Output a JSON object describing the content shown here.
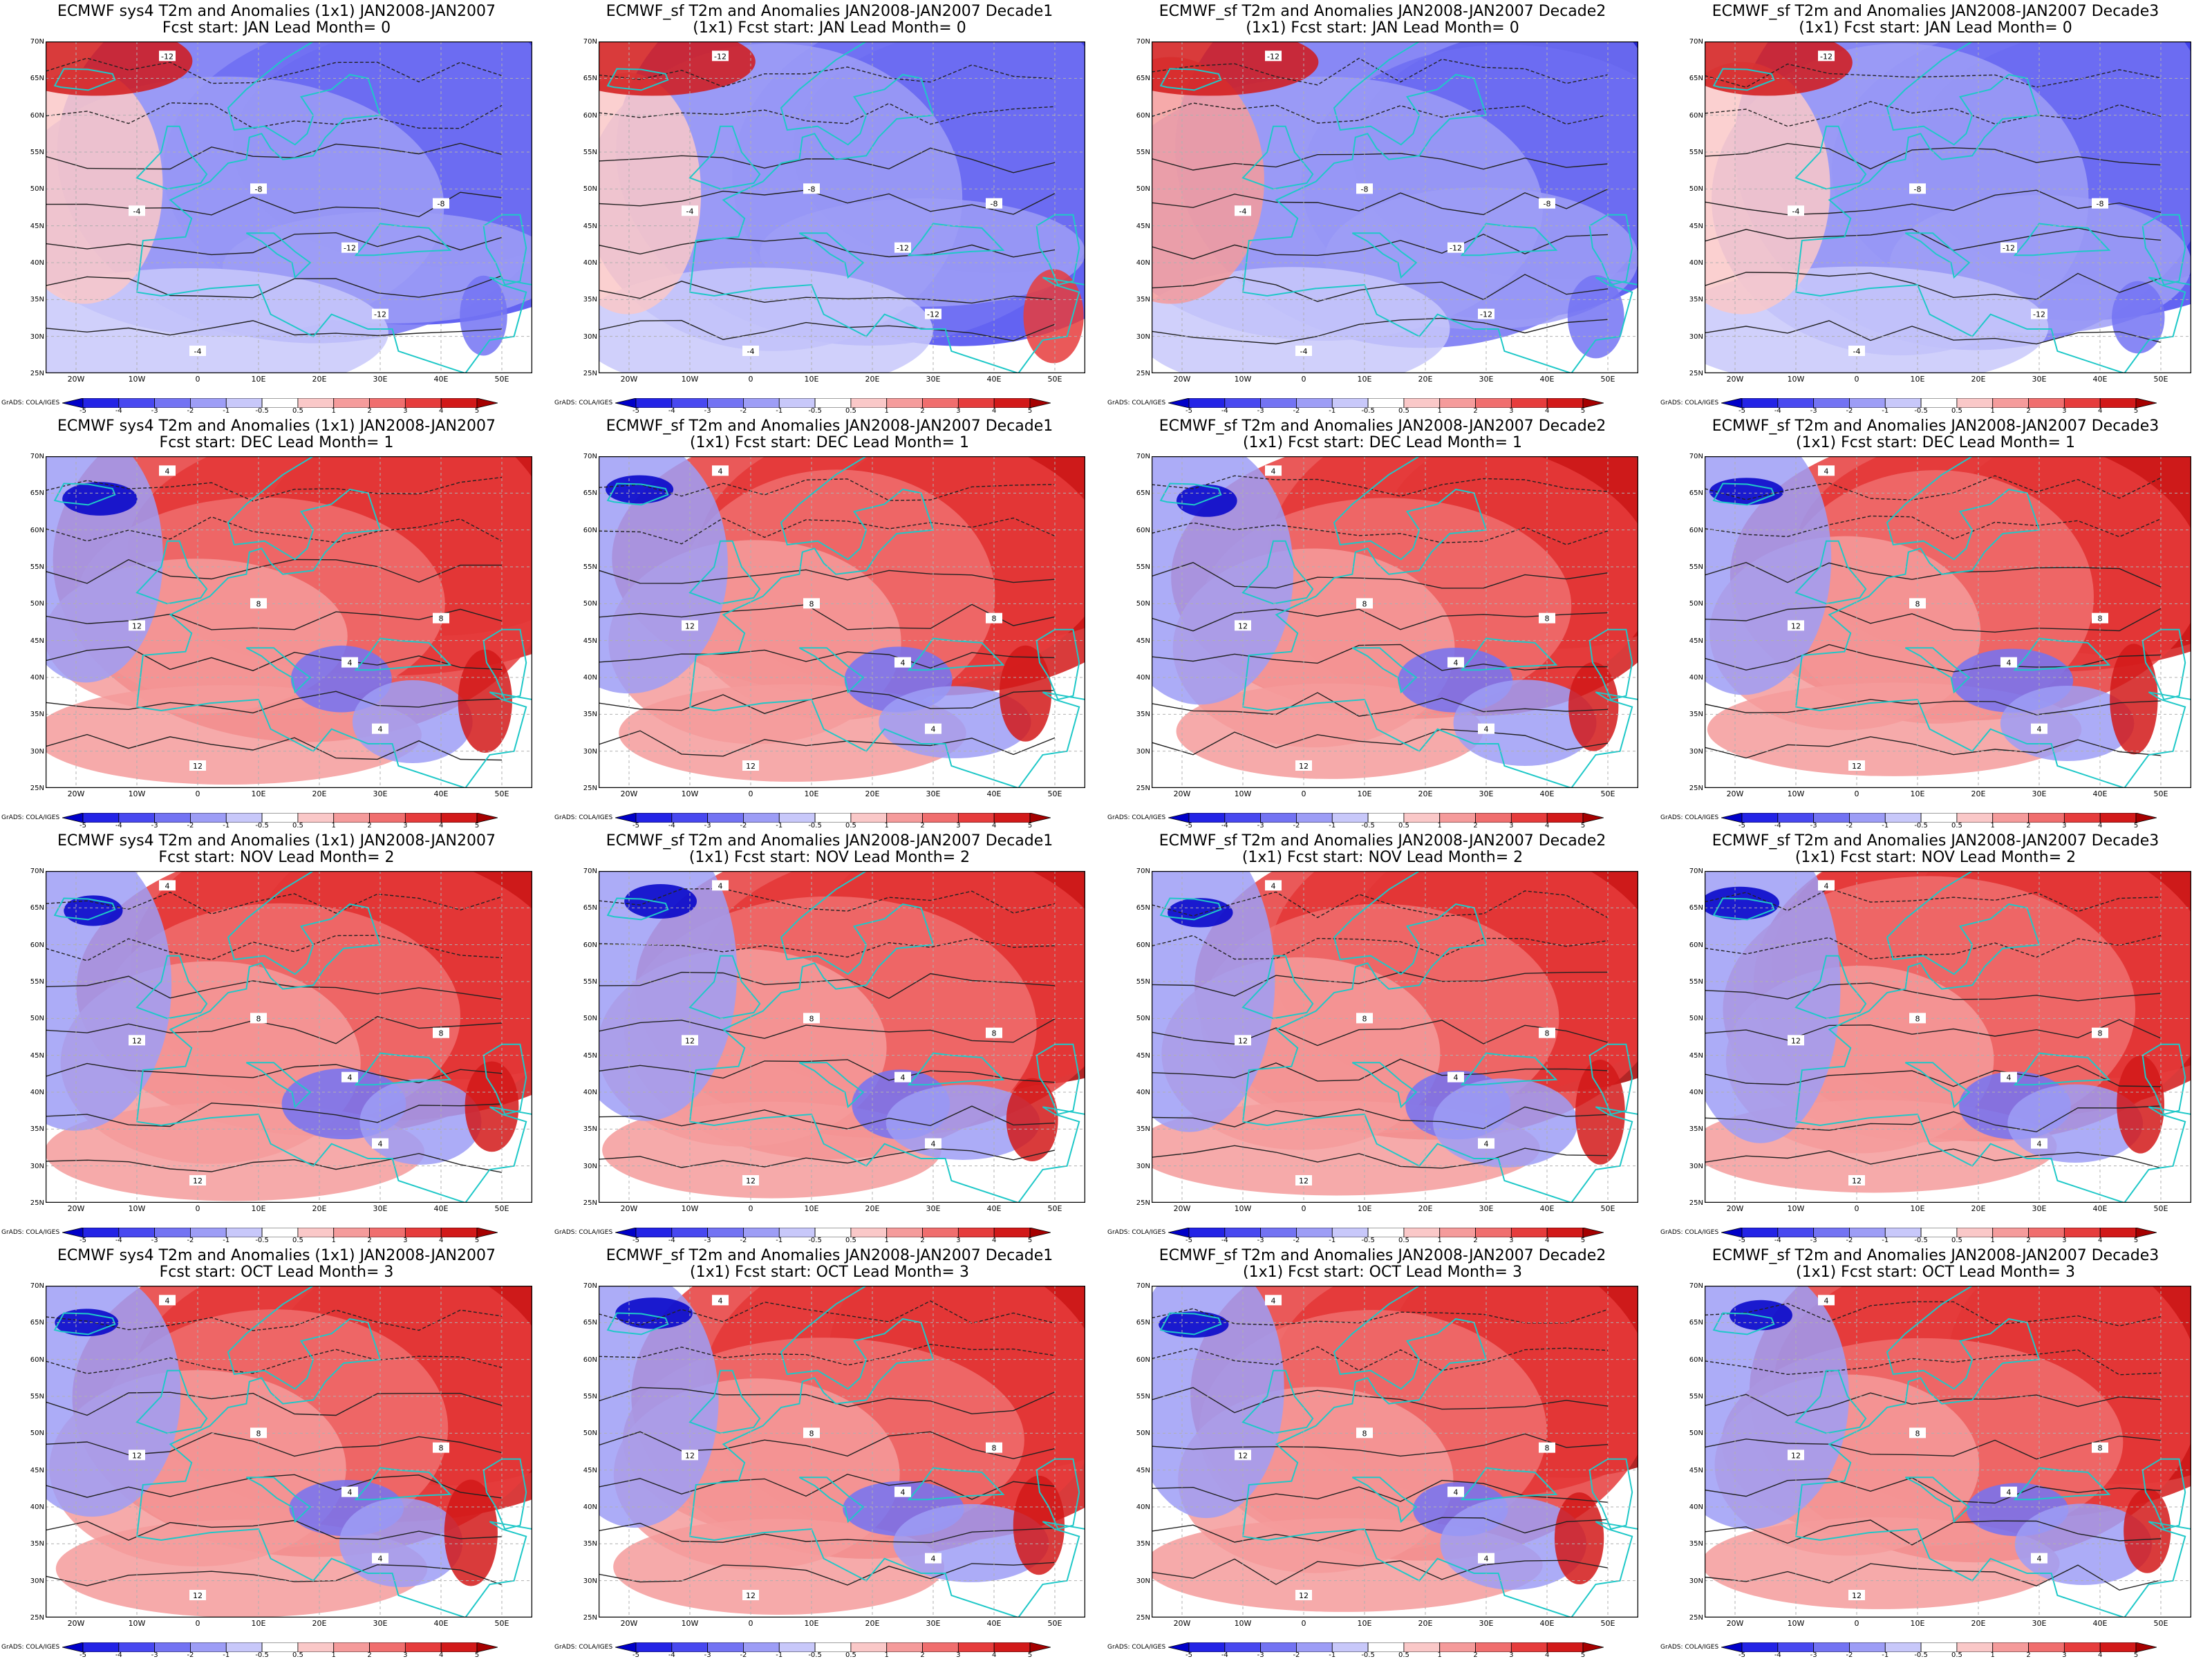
{
  "rows": [
    {
      "start": "JAN",
      "lead": "0"
    },
    {
      "start": "DEC",
      "lead": "1"
    },
    {
      "start": "NOV",
      "lead": "2"
    },
    {
      "start": "OCT",
      "lead": "3"
    }
  ],
  "columns": [
    {
      "title1": "ECMWF sys4 T2m and Anomalies (1x1) JAN2008-JAN2007",
      "title2_prefix": "",
      "decade": ""
    },
    {
      "title1": "ECMWF_sf T2m and Anomalies JAN2008-JAN2007 Decade1",
      "title2_prefix": "(1x1) ",
      "decade": "1"
    },
    {
      "title1": "ECMWF_sf T2m and Anomalies JAN2008-JAN2007 Decade2",
      "title2_prefix": "(1x1) ",
      "decade": "2"
    },
    {
      "title1": "ECMWF_sf T2m and Anomalies JAN2008-JAN2007 Decade3",
      "title2_prefix": "(1x1) ",
      "decade": "3"
    }
  ],
  "subtitle_template": {
    "fcst": "Fcst start:",
    "lead": "Lead Month="
  },
  "lat_labels": [
    "70N",
    "65N",
    "60N",
    "55N",
    "50N",
    "45N",
    "40N",
    "35N",
    "30N",
    "25N"
  ],
  "lon_labels": [
    "20W",
    "10W",
    "0",
    "10E",
    "20E",
    "30E",
    "40E",
    "50E"
  ],
  "colorbar": {
    "labels": [
      "-5",
      "-4",
      "-3",
      "-2",
      "-1",
      "-0.5",
      "0.5",
      "1",
      "2",
      "3",
      "4",
      "5"
    ],
    "colors": [
      "#0000c8",
      "#2323e6",
      "#4848f0",
      "#7373f3",
      "#9d9df6",
      "#c8c8fa",
      "#ffffff",
      "#fac8c8",
      "#f59b9b",
      "#f06e6e",
      "#e63c3c",
      "#d21919",
      "#a50000"
    ]
  },
  "credit": "GrADS: COLA/IGES",
  "contour_labels": [
    "-12",
    "-8",
    "-4",
    "4",
    "8",
    "12"
  ],
  "anomaly_regimes": [
    "cold",
    "warm",
    "warm",
    "warm"
  ]
}
